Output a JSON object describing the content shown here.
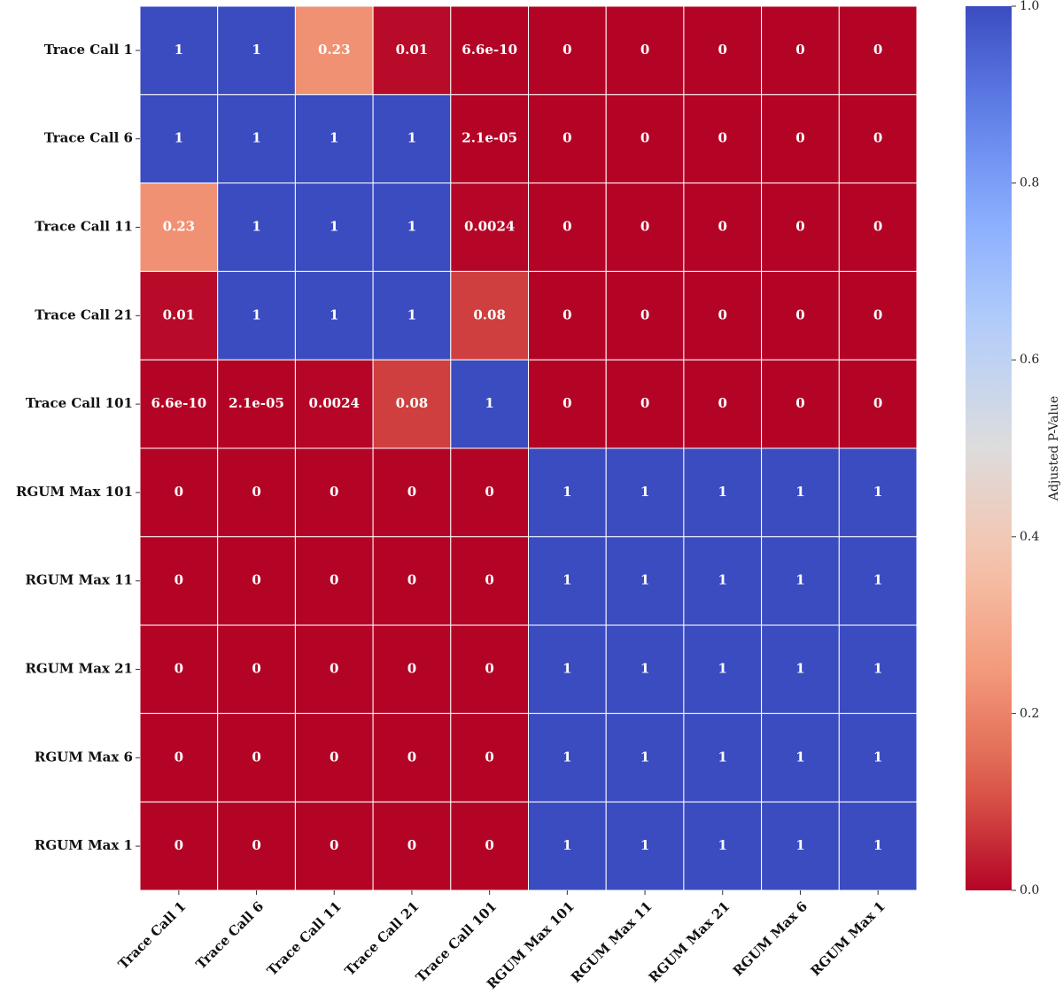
{
  "chart_data": {
    "type": "heatmap",
    "colormap": "coolwarm_r",
    "x_categories": [
      "Trace Call 1",
      "Trace Call 6",
      "Trace Call 11",
      "Trace Call 21",
      "Trace Call 101",
      "RGUM Max 101",
      "RGUM Max 11",
      "RGUM Max 21",
      "RGUM Max 6",
      "RGUM Max 1"
    ],
    "y_categories": [
      "Trace Call 1",
      "Trace Call 6",
      "Trace Call 11",
      "Trace Call 21",
      "Trace Call 101",
      "RGUM Max 101",
      "RGUM Max 11",
      "RGUM Max 21",
      "RGUM Max 6",
      "RGUM Max 1"
    ],
    "values": [
      [
        1,
        1,
        0.23,
        0.01,
        6.6e-10,
        0,
        0,
        0,
        0,
        0
      ],
      [
        1,
        1,
        1,
        1,
        2.1e-05,
        0,
        0,
        0,
        0,
        0
      ],
      [
        0.23,
        1,
        1,
        1,
        0.0024,
        0,
        0,
        0,
        0,
        0
      ],
      [
        0.01,
        1,
        1,
        1,
        0.08,
        0,
        0,
        0,
        0,
        0
      ],
      [
        6.6e-10,
        2.1e-05,
        0.0024,
        0.08,
        1,
        0,
        0,
        0,
        0,
        0
      ],
      [
        0,
        0,
        0,
        0,
        0,
        1,
        1,
        1,
        1,
        1
      ],
      [
        0,
        0,
        0,
        0,
        0,
        1,
        1,
        1,
        1,
        1
      ],
      [
        0,
        0,
        0,
        0,
        0,
        1,
        1,
        1,
        1,
        1
      ],
      [
        0,
        0,
        0,
        0,
        0,
        1,
        1,
        1,
        1,
        1
      ],
      [
        0,
        0,
        0,
        0,
        0,
        1,
        1,
        1,
        1,
        1
      ]
    ],
    "value_labels": [
      [
        "1",
        "1",
        "0.23",
        "0.01",
        "6.6e-10",
        "0",
        "0",
        "0",
        "0",
        "0"
      ],
      [
        "1",
        "1",
        "1",
        "1",
        "2.1e-05",
        "0",
        "0",
        "0",
        "0",
        "0"
      ],
      [
        "0.23",
        "1",
        "1",
        "1",
        "0.0024",
        "0",
        "0",
        "0",
        "0",
        "0"
      ],
      [
        "0.01",
        "1",
        "1",
        "1",
        "0.08",
        "0",
        "0",
        "0",
        "0",
        "0"
      ],
      [
        "6.6e-10",
        "2.1e-05",
        "0.0024",
        "0.08",
        "1",
        "0",
        "0",
        "0",
        "0",
        "0"
      ],
      [
        "0",
        "0",
        "0",
        "0",
        "0",
        "1",
        "1",
        "1",
        "1",
        "1"
      ],
      [
        "0",
        "0",
        "0",
        "0",
        "0",
        "1",
        "1",
        "1",
        "1",
        "1"
      ],
      [
        "0",
        "0",
        "0",
        "0",
        "0",
        "1",
        "1",
        "1",
        "1",
        "1"
      ],
      [
        "0",
        "0",
        "0",
        "0",
        "0",
        "1",
        "1",
        "1",
        "1",
        "1"
      ],
      [
        "0",
        "0",
        "0",
        "0",
        "0",
        "1",
        "1",
        "1",
        "1",
        "1"
      ]
    ],
    "colorbar_label": "Adjusted P-Value",
    "clim": [
      0,
      1
    ],
    "colorbar_ticks": [
      {
        "value": 0,
        "label": "0.0"
      },
      {
        "value": 0.2,
        "label": "0.2"
      },
      {
        "value": 0.4,
        "label": "0.4"
      },
      {
        "value": 0.6,
        "label": "0.6"
      },
      {
        "value": 0.8,
        "label": "0.8"
      },
      {
        "value": 1,
        "label": "1.0"
      }
    ]
  }
}
